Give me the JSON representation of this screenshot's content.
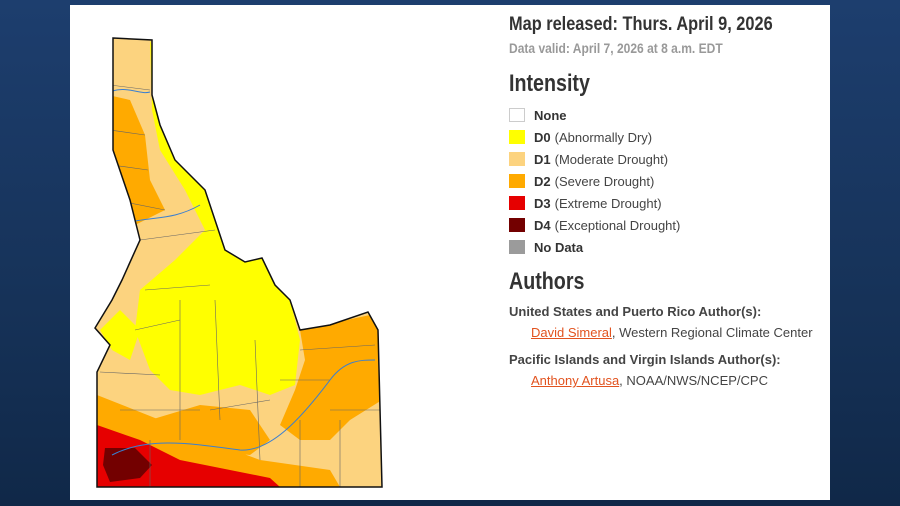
{
  "map": {
    "released": "Map released: Thurs. April 9, 2026",
    "valid": "Data valid: April 7, 2026 at 8 a.m. EDT",
    "region": "Idaho"
  },
  "legend": {
    "title": "Intensity",
    "items": [
      {
        "code": "",
        "label": "None",
        "color": "#ffffff"
      },
      {
        "code": "D0",
        "label": "(Abnormally Dry)",
        "color": "#ffff00"
      },
      {
        "code": "D1",
        "label": "(Moderate Drought)",
        "color": "#fcd37f"
      },
      {
        "code": "D2",
        "label": "(Severe Drought)",
        "color": "#ffaa00"
      },
      {
        "code": "D3",
        "label": "(Extreme Drought)",
        "color": "#e60000"
      },
      {
        "code": "D4",
        "label": "(Exceptional Drought)",
        "color": "#730000"
      },
      {
        "code": "",
        "label": "No Data",
        "color": "#9b9b9b"
      }
    ]
  },
  "authors": {
    "title": "Authors",
    "groups": [
      {
        "label": "United States and Puerto Rico Author(s):",
        "name": "David Simeral",
        "org": ", Western Regional Climate Center"
      },
      {
        "label": "Pacific Islands and Virgin Islands Author(s):",
        "name": "Anthony Artusa",
        "org": ", NOAA/NWS/NCEP/CPC"
      }
    ]
  }
}
